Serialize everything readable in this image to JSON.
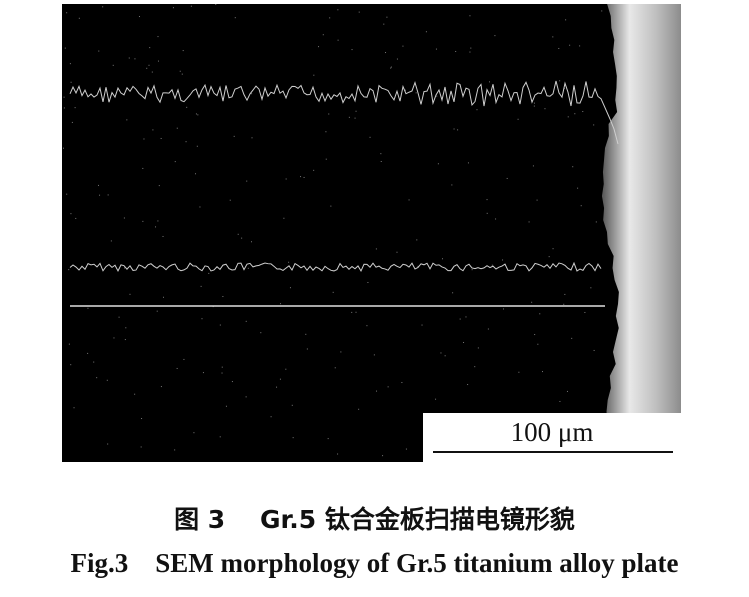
{
  "figure": {
    "scale_bar_label": "100 μm",
    "caption_cn": "图 3    Gr.5 钛合金板扫描电镜形貌",
    "caption_en": "Fig.3    SEM morphology of Gr.5 titanium alloy plate"
  },
  "colors": {
    "background": "#000000",
    "trace": "#d8d8d8",
    "surface_layer": "#9a9a9a"
  }
}
